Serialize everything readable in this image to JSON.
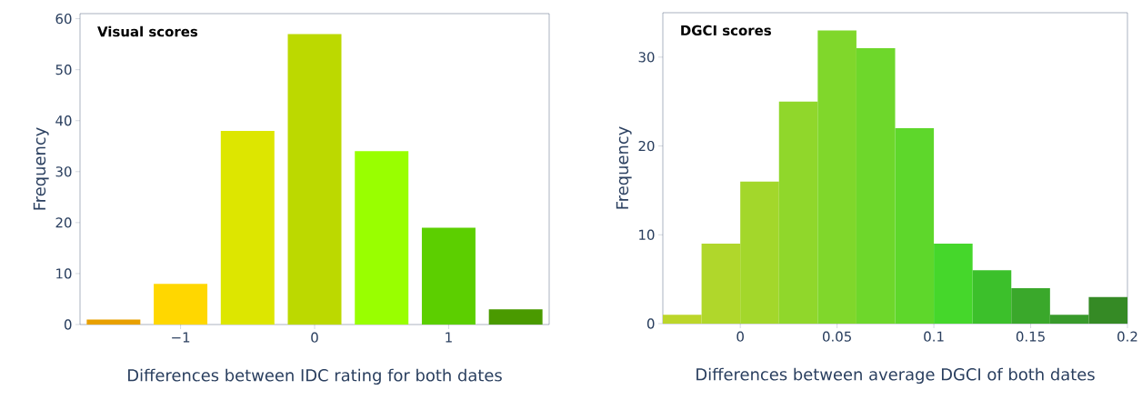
{
  "chart_data": [
    {
      "type": "bar",
      "title": "Visual scores",
      "xlabel": "Differences between IDC rating for both dates",
      "ylabel": "Frequency",
      "x": [
        -1.5,
        -1,
        -0.5,
        0,
        0.5,
        1,
        1.5
      ],
      "values": [
        1,
        8,
        38,
        57,
        34,
        19,
        3
      ],
      "colors": [
        "#e8a000",
        "#ffd700",
        "#dde600",
        "#bcd900",
        "#99ff00",
        "#5ccf00",
        "#4a9a00"
      ],
      "xlim": [
        -1.75,
        1.75
      ],
      "ylim": [
        0,
        61
      ],
      "xticks": [
        {
          "value": -1,
          "label": "−1"
        },
        0,
        1
      ],
      "yticks": [
        0,
        10,
        20,
        30,
        40,
        50,
        60
      ],
      "grid": false
    },
    {
      "type": "histogram",
      "title": "DGCI scores",
      "xlabel": "Differences between average DGCI of both dates",
      "ylabel": "Frequency",
      "bins": [
        -0.04,
        -0.02,
        0,
        0.02,
        0.04,
        0.06,
        0.08,
        0.1,
        0.12,
        0.14,
        0.16,
        0.18,
        0.2
      ],
      "values": [
        1,
        9,
        16,
        25,
        33,
        31,
        22,
        9,
        6,
        4,
        1,
        3
      ],
      "colors": [
        "#bcd62a",
        "#b0d72b",
        "#a3d72b",
        "#90d72b",
        "#80d72b",
        "#6ed72b",
        "#5ed72b",
        "#45d72b",
        "#3cc02b",
        "#3aa82b",
        "#389a2b",
        "#358a25"
      ],
      "xlim": [
        -0.04,
        0.2
      ],
      "ylim": [
        0,
        35
      ],
      "xticks": [
        0,
        0.05,
        0.1,
        0.15,
        0.2
      ],
      "yticks": [
        0,
        10,
        20,
        30
      ],
      "grid": false
    }
  ]
}
